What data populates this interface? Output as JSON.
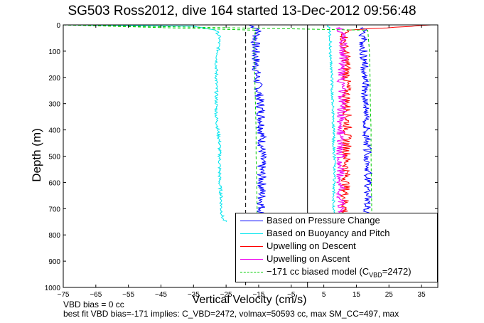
{
  "title": "SG503 Ross2012, dive 164 started 13-Dec-2012 09:56:48",
  "notes": {
    "vbd_bias": "VBD bias = 0 cc",
    "best_fit": "best fit VBD bias=-171 implies: C_VBD=2472, volmax=50593 cc, max SM_CC=497, max"
  },
  "legend": {
    "pressure": "Based on Pressure Change",
    "buoyancy": "Based on Buoyancy and Pitch",
    "descent": "Upwelling on Descent",
    "ascent": "Upwelling on Ascent",
    "model_prefix": "−171 cc biased model (C",
    "model_sub": "VBD",
    "model_suffix": "=2472)"
  },
  "chart_data": {
    "type": "line",
    "title": "SG503 Ross2012, dive 164 started 13-Dec-2012 09:56:48",
    "xlabel": "Vertical Velocity (cm/s)",
    "ylabel": "Depth (m)",
    "xlim": [
      -75,
      40
    ],
    "ylim": [
      1000,
      0
    ],
    "y_reversed": true,
    "xticks": [
      -75,
      -65,
      -55,
      -45,
      -35,
      -25,
      -15,
      -5,
      5,
      15,
      25,
      35
    ],
    "yticks": [
      0,
      100,
      200,
      300,
      400,
      500,
      600,
      700,
      800,
      900,
      1000
    ],
    "grid": false,
    "legend_position": "bottom-right",
    "colors": {
      "pressure": "#0000ff",
      "buoyancy": "#00e5ee",
      "descent": "#ff0000",
      "ascent": "#ee00ee",
      "model": "#00cc00"
    },
    "reference_lines": [
      {
        "x": -19,
        "style": "dashed",
        "color": "#000000"
      },
      {
        "x": 0,
        "style": "solid",
        "color": "#000000"
      }
    ],
    "series": [
      {
        "name": "Based on Pressure Change",
        "key": "pressure_descent",
        "depth": [
          0,
          15,
          30,
          60,
          100,
          150,
          200,
          250,
          300,
          350,
          400,
          450,
          500,
          550,
          600,
          650,
          700,
          740
        ],
        "values": [
          -18,
          -15,
          -15.5,
          -16,
          -16,
          -15.8,
          -15.5,
          -15,
          -14.5,
          -14.2,
          -14,
          -14,
          -14,
          -14.2,
          -14,
          -14,
          -14.2,
          -14
        ]
      },
      {
        "name": "",
        "key": "pressure_ascent",
        "depth": [
          740,
          700,
          650,
          600,
          550,
          500,
          450,
          400,
          350,
          300,
          250,
          200,
          150,
          100,
          50,
          10
        ],
        "values": [
          18,
          18.2,
          18.5,
          18.5,
          18.6,
          18.5,
          18.3,
          18.2,
          18,
          18,
          17.8,
          17.5,
          17.5,
          17.2,
          17,
          17
        ]
      },
      {
        "name": "Based on Buoyancy and Pitch",
        "key": "buoyancy_descent",
        "depth": [
          0,
          5,
          20,
          50,
          100,
          150,
          200,
          250,
          300,
          350,
          400,
          450,
          500,
          550,
          600,
          650,
          700,
          740,
          750
        ],
        "values": [
          -75,
          -35,
          -28,
          -27,
          -27.5,
          -28,
          -28,
          -28,
          -28,
          -28,
          -27.5,
          -27,
          -27,
          -27,
          -27,
          -26.5,
          -26.5,
          -26,
          -25
        ]
      },
      {
        "name": "",
        "key": "buoyancy_ascent",
        "depth": [
          740,
          700,
          650,
          600,
          550,
          500,
          450,
          400,
          350,
          300,
          250,
          200,
          150,
          100,
          50,
          10,
          0
        ],
        "values": [
          8,
          8,
          8,
          8.2,
          8.3,
          8.2,
          8,
          8,
          7.8,
          7.8,
          7.5,
          7.5,
          7.2,
          7,
          7,
          6.5,
          6
        ]
      },
      {
        "name": "Upwelling on Descent",
        "key": "descent",
        "depth": [
          0,
          20,
          60,
          100,
          150,
          200,
          250,
          300,
          350,
          400,
          450,
          500,
          550,
          600,
          650,
          700,
          740
        ],
        "values": [
          38,
          12,
          11,
          11.5,
          12,
          12,
          12,
          12,
          12.2,
          12.2,
          12,
          12,
          11.8,
          11.8,
          11.5,
          11.5,
          11.5
        ]
      },
      {
        "name": "Upwelling on Ascent",
        "key": "ascent",
        "depth": [
          740,
          700,
          650,
          600,
          550,
          500,
          450,
          400,
          350,
          300,
          250,
          200,
          150,
          100,
          50,
          10
        ],
        "values": [
          10.5,
          10.5,
          10,
          10,
          10,
          10.2,
          10.2,
          10.3,
          10.5,
          10.5,
          10.6,
          10.5,
          10.8,
          11,
          11,
          10
        ]
      },
      {
        "name": "−171 cc biased model (CVBD=2472)",
        "key": "model_descent",
        "depth": [
          0,
          20,
          100,
          200,
          300,
          400,
          500,
          600,
          700,
          740
        ],
        "values": [
          -75,
          -16,
          -16.5,
          -16.2,
          -16,
          -15.8,
          -15.8,
          -15.6,
          -15.5,
          -15.5
        ]
      },
      {
        "name": "",
        "key": "model_ascent",
        "depth": [
          0,
          20,
          100,
          200,
          300,
          400,
          500,
          600,
          700,
          740
        ],
        "values": [
          -75,
          18.5,
          19,
          19.2,
          19.3,
          19.5,
          19.5,
          19.6,
          19.7,
          19.7
        ]
      }
    ]
  }
}
